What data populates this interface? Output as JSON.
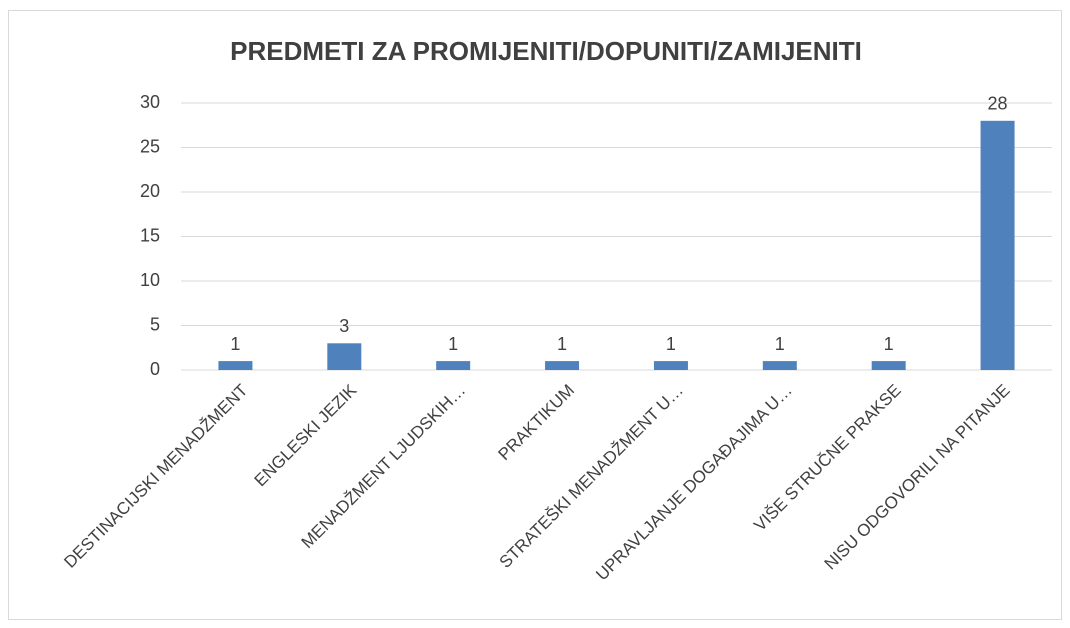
{
  "chart_data": {
    "type": "bar",
    "title": "PREDMETI ZA PROMIJENITI/DOPUNITI/ZAMIJENITI",
    "categories": [
      "DESTINACIJSKI MENADŽMENT",
      "ENGLESKI JEZIK",
      "MENADŽMENT LJUDSKIH…",
      "PRAKTIKUM",
      "STRATEŠKI MENADŽMENT U…",
      "UPRAVLJANJE DOGAĐAJIMA U…",
      "VIŠE STRUČNE PRAKSE",
      "NISU ODGOVORILI NA PITANJE"
    ],
    "values": [
      1,
      3,
      1,
      1,
      1,
      1,
      1,
      28
    ],
    "color": "#4f81bd",
    "ylim": [
      0,
      30
    ],
    "yticks": [
      0,
      5,
      10,
      15,
      20,
      25,
      30
    ],
    "grid": true
  }
}
